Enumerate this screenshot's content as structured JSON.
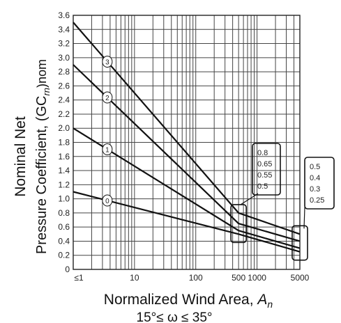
{
  "chart_data": {
    "type": "line",
    "x_scale": "log",
    "xlim": [
      1,
      5000
    ],
    "ylim": [
      0,
      3.6
    ],
    "x_ticks": [
      {
        "value": 1,
        "label": "≤1"
      },
      {
        "value": 10,
        "label": "10"
      },
      {
        "value": 100,
        "label": "100"
      },
      {
        "value": 500,
        "label": "500"
      },
      {
        "value": 1000,
        "label": "1000"
      },
      {
        "value": 5000,
        "label": "5000"
      }
    ],
    "y_ticks": [
      "0",
      "0.2",
      "0.4",
      "0.6",
      "0.8",
      "1.0",
      "1.2",
      "1.4",
      "1.6",
      "1.8",
      "2.0",
      "2.2",
      "2.4",
      "2.6",
      "2.8",
      "3.0",
      "3.2",
      "3.4",
      "3.6"
    ],
    "xlabel": "Normalized Wind Area, ",
    "xlabel_var": "A",
    "xlabel_sub": "n",
    "subtitle": "15°≤ ω ≤ 35°",
    "ylabel_line1": "Nominal Net",
    "ylabel_line2": "Pressure Coefficient, (GC",
    "ylabel_sub": "rn",
    "ylabel_end": ")nom",
    "grid": true,
    "series": [
      {
        "name": "3",
        "points": [
          [
            1,
            3.5
          ],
          [
            500,
            0.8
          ],
          [
            5000,
            0.5
          ]
        ]
      },
      {
        "name": "2",
        "points": [
          [
            1,
            2.9
          ],
          [
            500,
            0.65
          ],
          [
            5000,
            0.4
          ]
        ]
      },
      {
        "name": "1",
        "points": [
          [
            1,
            2.0
          ],
          [
            500,
            0.55
          ],
          [
            5000,
            0.3
          ]
        ]
      },
      {
        "name": "0",
        "points": [
          [
            1,
            1.1
          ],
          [
            500,
            0.5
          ],
          [
            5000,
            0.25
          ]
        ]
      }
    ],
    "annotations": [
      {
        "at_x": 500,
        "values": [
          "0.8",
          "0.65",
          "0.55",
          "0.5"
        ]
      },
      {
        "at_x": 5000,
        "values": [
          "0.5",
          "0.4",
          "0.3",
          "0.25"
        ]
      }
    ]
  }
}
